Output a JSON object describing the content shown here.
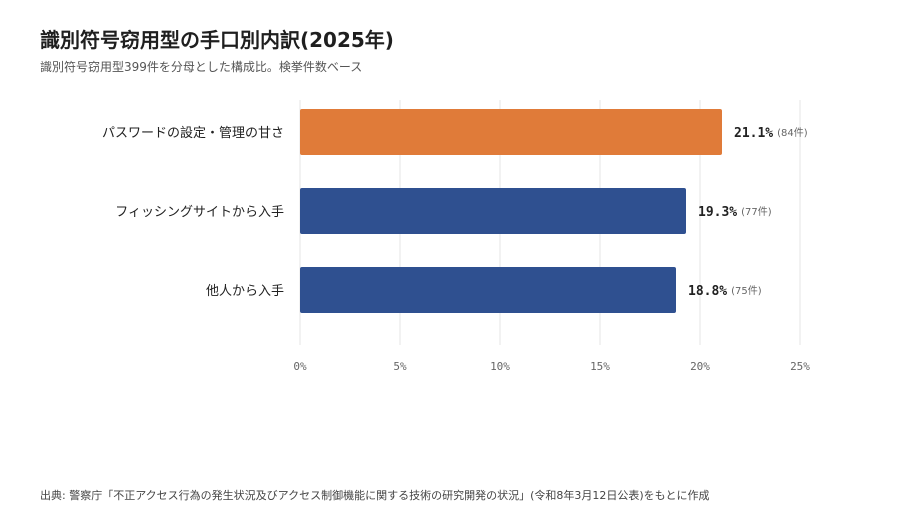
{
  "header": {
    "title": "識別符号窃用型の手口別内訳(2025年)",
    "subtitle": "識別符号窃用型399件を分母とした構成比。検挙件数ベース"
  },
  "chart_data": {
    "type": "bar",
    "orientation": "horizontal",
    "categories": [
      "パスワードの設定・管理の甘さ",
      "フィッシングサイトから入手",
      "他人から入手"
    ],
    "values": [
      21.1,
      19.3,
      18.8
    ],
    "value_labels": [
      "21.1%",
      "19.3%",
      "18.8%"
    ],
    "count_labels": [
      "(84件)",
      "(77件)",
      "(75件)"
    ],
    "xlim": [
      0,
      25
    ],
    "xticks": [
      "0%",
      "5%",
      "10%",
      "15%",
      "20%",
      "25%"
    ],
    "bar_colors": [
      "#E07B39",
      "#2F5090",
      "#2F5090"
    ],
    "grid": true
  },
  "footer": {
    "source": "出典: 警察庁「不正アクセス行為の発生状況及びアクセス制御機能に関する技術の研究開発の状況」(令和8年3月12日公表)をもとに作成"
  }
}
